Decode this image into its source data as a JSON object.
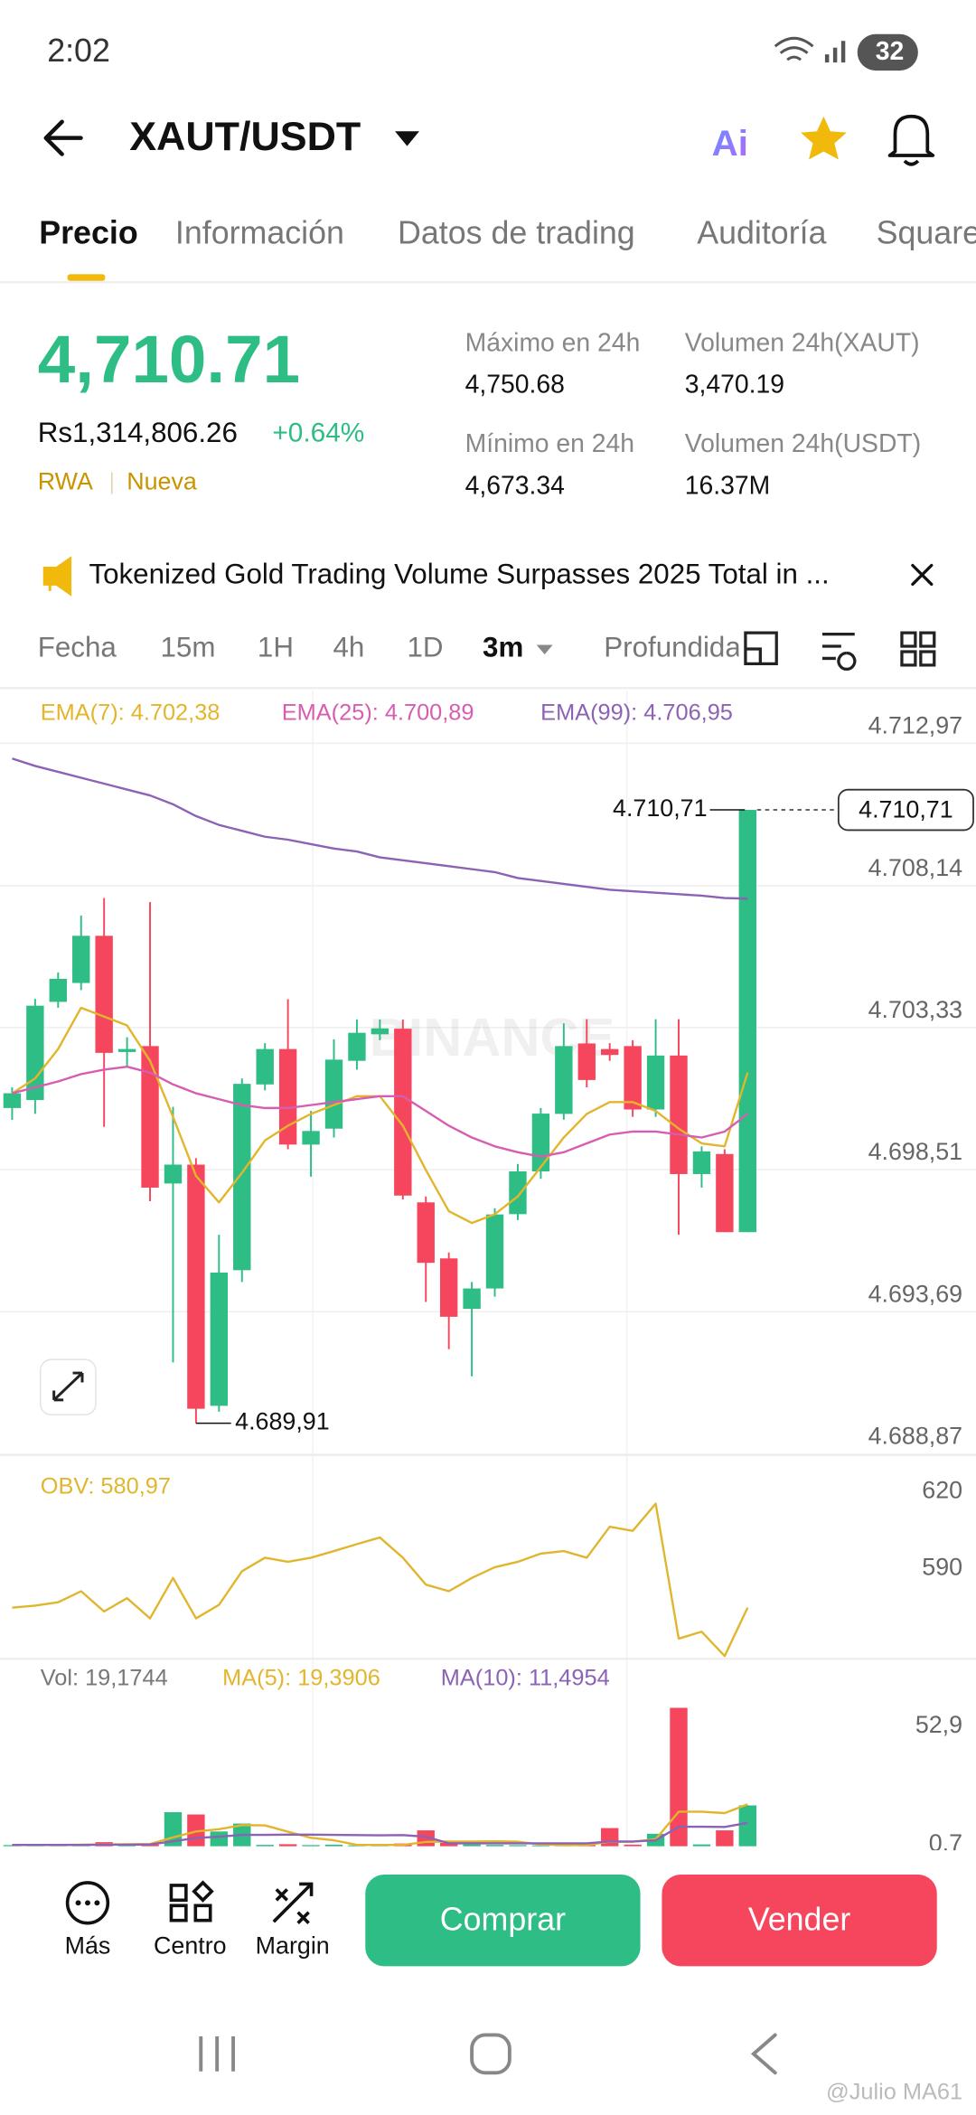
{
  "status_bar": {
    "time": "2:02",
    "battery": "32"
  },
  "header": {
    "pair": "XAUT/USDT",
    "ai": "Ai"
  },
  "tabs": [
    "Precio",
    "Información",
    "Datos de trading",
    "Auditoría",
    "Square"
  ],
  "price": {
    "last": "4,710.71",
    "fiat": "Rs1,314,806.26",
    "change": "+0.64%",
    "tags": [
      "RWA",
      "Nueva"
    ]
  },
  "stats": [
    {
      "label": "Máximo en 24h",
      "value": "4,750.68"
    },
    {
      "label": "Volumen 24h(XAUT)",
      "value": "3,470.19"
    },
    {
      "label": "Mínimo en 24h",
      "value": "4,673.34"
    },
    {
      "label": "Volumen 24h(USDT)",
      "value": "16.37M"
    }
  ],
  "news": "Tokenized Gold Trading Volume Surpasses 2025 Total in ...",
  "intervals": [
    "Fecha",
    "15m",
    "1H",
    "4h",
    "1D",
    "3m",
    "Profundidad"
  ],
  "chart_data": [
    {
      "type": "candlestick",
      "watermark": "BINANCE",
      "up_color": "#2ebd85",
      "down_color": "#f6465d",
      "open": [
        4700.6,
        4700.87,
        4704.2,
        4704.84,
        4706.44,
        4702.5,
        4702.7,
        4698.04,
        4698.68,
        4690.5,
        4695.1,
        4701.4,
        4702.6,
        4699.36,
        4699.9,
        4702.2,
        4703.1,
        4703.29,
        4697.4,
        4695.5,
        4693.79,
        4694.48,
        4697.0,
        4698.45,
        4700.4,
        4702.79,
        4702.6,
        4702.7,
        4700.55,
        4702.38,
        4698.36,
        4699.04,
        4696.39
      ],
      "high": [
        4701.3,
        4704.3,
        4705.2,
        4707.13,
        4707.72,
        4703.0,
        4707.58,
        4700.64,
        4698.9,
        4696.3,
        4701.6,
        4702.8,
        4704.29,
        4700.5,
        4702.93,
        4703.6,
        4703.6,
        4703.6,
        4697.6,
        4695.7,
        4694.7,
        4697.2,
        4698.7,
        4700.6,
        4703.47,
        4703.61,
        4702.8,
        4702.9,
        4703.61,
        4703.61,
        4699.3,
        4699.2,
        4710.71
      ],
      "low": [
        4700.2,
        4700.4,
        4704.0,
        4704.6,
        4699.96,
        4702.0,
        4697.44,
        4691.97,
        4689.91,
        4690.3,
        4694.7,
        4701.2,
        4699.2,
        4698.27,
        4699.6,
        4701.9,
        4702.9,
        4697.5,
        4694.02,
        4692.42,
        4691.5,
        4694.2,
        4696.8,
        4698.2,
        4700.2,
        4701.3,
        4702.2,
        4700.3,
        4700.3,
        4696.3,
        4697.9,
        4696.39,
        4696.39
      ],
      "close": [
        4701.1,
        4704.07,
        4704.98,
        4706.44,
        4702.47,
        4702.6,
        4697.9,
        4698.68,
        4690.4,
        4695.02,
        4701.42,
        4702.6,
        4699.36,
        4699.82,
        4702.24,
        4703.15,
        4703.3,
        4697.63,
        4695.35,
        4693.52,
        4694.48,
        4696.99,
        4698.45,
        4700.41,
        4702.7,
        4701.55,
        4702.4,
        4700.55,
        4702.38,
        4698.36,
        4699.13,
        4696.39,
        4710.71
      ],
      "indicators": [
        {
          "label": "EMA(7): 4.702,38",
          "color": "#e3b52d",
          "values": [
            4701.1,
            4701.6,
            4702.6,
            4704.0,
            4703.7,
            4703.4,
            4702.2,
            4700.3,
            4698.3,
            4697.4,
            4698.4,
            4699.5,
            4700.0,
            4700.4,
            4700.7,
            4701.0,
            4701.0,
            4700.0,
            4698.5,
            4697.1,
            4696.7,
            4697.0,
            4697.6,
            4698.6,
            4699.6,
            4700.4,
            4700.8,
            4700.8,
            4700.5,
            4699.9,
            4699.4,
            4699.3,
            4701.8
          ]
        },
        {
          "label": "EMA(25): 4.700,89",
          "color": "#d65db1",
          "values": [
            4701.1,
            4701.3,
            4701.5,
            4701.75,
            4701.9,
            4702.0,
            4701.8,
            4701.4,
            4701.1,
            4700.9,
            4700.7,
            4700.6,
            4700.6,
            4700.7,
            4700.8,
            4700.9,
            4701.0,
            4701.0,
            4700.5,
            4700.0,
            4699.6,
            4699.3,
            4699.1,
            4698.95,
            4699.1,
            4699.4,
            4699.7,
            4699.8,
            4699.8,
            4699.7,
            4699.6,
            4699.8,
            4700.4
          ]
        },
        {
          "label": "EMA(99): 4.706,95",
          "color": "#8c62b5",
          "values": [
            4712.45,
            4712.2,
            4712.0,
            4711.8,
            4711.6,
            4711.4,
            4711.2,
            4710.9,
            4710.5,
            4710.2,
            4710.0,
            4709.8,
            4709.7,
            4709.55,
            4709.4,
            4709.3,
            4709.1,
            4709.0,
            4708.9,
            4708.8,
            4708.7,
            4708.6,
            4708.4,
            4708.3,
            4708.2,
            4708.1,
            4708.0,
            4707.95,
            4707.9,
            4707.85,
            4707.8,
            4707.72,
            4707.7
          ]
        }
      ],
      "high_label": {
        "value": 4710.71,
        "label": "4.710,71"
      },
      "low_label": {
        "value": 4689.91,
        "label": "4.689,91"
      },
      "last_price": {
        "value": 4710.71,
        "label": "4.710,71"
      },
      "ylim": [
        4688.87,
        4714.75
      ],
      "yticks": [
        {
          "value": 4712.97,
          "label": "4.712,97"
        },
        {
          "value": 4708.14,
          "label": "4.708,14"
        },
        {
          "value": 4703.33,
          "label": "4.703,33"
        },
        {
          "value": 4698.51,
          "label": "4.698,51"
        },
        {
          "value": 4693.69,
          "label": "4.693,69"
        },
        {
          "value": 4688.87,
          "label": "4.688,87"
        }
      ],
      "grid": true
    },
    {
      "type": "line",
      "label": "OBV: 580,97",
      "color": "#e0b62e",
      "values": [
        574.7,
        575.5,
        576.8,
        581.1,
        573.2,
        578.4,
        570.5,
        586.3,
        570.5,
        575.8,
        588.9,
        594.2,
        592.6,
        594.2,
        596.8,
        599.5,
        602.1,
        594.2,
        583.7,
        581.1,
        586.3,
        590.5,
        592.6,
        595.8,
        596.8,
        594.2,
        606.3,
        604.7,
        615.3,
        562.6,
        565.3,
        555.8,
        574.7
      ],
      "ylim": [
        554.7,
        633.7
      ],
      "yticks": [
        620,
        590
      ]
    },
    {
      "type": "bar",
      "label": "Vol: 19,1744",
      "values": [
        0.5,
        0.6,
        0.4,
        0.8,
        1.8,
        0.9,
        0.8,
        15,
        14,
        6.5,
        10,
        0.6,
        0.9,
        0.5,
        0.7,
        0.4,
        0.3,
        1.2,
        7,
        1.5,
        0.8,
        0.6,
        0.5,
        0.4,
        0.5,
        0.6,
        8,
        0.7,
        5.5,
        61,
        0.8,
        7,
        18
      ],
      "indicators": [
        {
          "label": "MA(5): 19,3906",
          "color": "#e3b52d",
          "values": [
            0.6,
            0.6,
            0.6,
            0.7,
            0.8,
            0.9,
            1.0,
            3.9,
            6.5,
            7.5,
            9.3,
            9.2,
            6.4,
            3.7,
            2.6,
            0.6,
            0.6,
            0.6,
            1.9,
            2.1,
            2.1,
            2.2,
            2.0,
            0.8,
            0.5,
            0.5,
            2.0,
            2.0,
            3.1,
            15.2,
            15.2,
            14.6,
            18.5
          ]
        },
        {
          "label": "MA(10): 11,4954",
          "color": "#8c62b5",
          "values": [
            0.6,
            0.6,
            0.6,
            0.6,
            0.7,
            0.7,
            0.8,
            2.2,
            3.6,
            4.2,
            5.0,
            5.0,
            5.1,
            5.1,
            5.0,
            4.9,
            4.8,
            4.9,
            4.2,
            1.3,
            1.3,
            1.3,
            1.3,
            1.3,
            1.3,
            1.3,
            2.1,
            2.1,
            2.6,
            8.6,
            8.6,
            8.5,
            10.3
          ]
        }
      ],
      "ylim": [
        0,
        81.4
      ],
      "yticks": [
        {
          "value": 52.9,
          "label": "52,9"
        },
        {
          "value": 0.7,
          "label": "0,7"
        }
      ]
    }
  ],
  "bottom": {
    "actions": [
      "Más",
      "Centro",
      "Margin"
    ],
    "buy": "Comprar",
    "sell": "Vender"
  },
  "watermark": "@Julio MA61"
}
